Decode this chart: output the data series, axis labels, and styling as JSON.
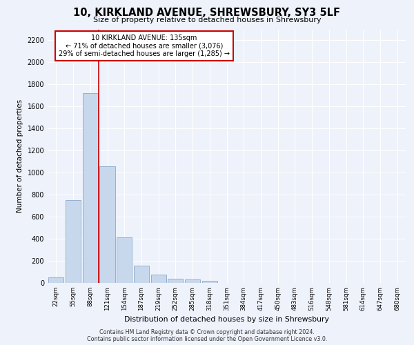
{
  "title": "10, KIRKLAND AVENUE, SHREWSBURY, SY3 5LF",
  "subtitle": "Size of property relative to detached houses in Shrewsbury",
  "xlabel": "Distribution of detached houses by size in Shrewsbury",
  "ylabel": "Number of detached properties",
  "footer_line1": "Contains HM Land Registry data © Crown copyright and database right 2024.",
  "footer_line2": "Contains public sector information licensed under the Open Government Licence v3.0.",
  "annotation_line1": "10 KIRKLAND AVENUE: 135sqm",
  "annotation_line2": "← 71% of detached houses are smaller (3,076)",
  "annotation_line3": "29% of semi-detached houses are larger (1,285) →",
  "bar_color": "#c8d8ec",
  "bar_edge_color": "#8aa8c8",
  "vline_color": "#cc0000",
  "annotation_box_edge_color": "#cc0000",
  "background_color": "#eef2fb",
  "plot_bg_color": "#eef2fb",
  "categories": [
    "22sqm",
    "55sqm",
    "88sqm",
    "121sqm",
    "154sqm",
    "187sqm",
    "219sqm",
    "252sqm",
    "285sqm",
    "318sqm",
    "351sqm",
    "384sqm",
    "417sqm",
    "450sqm",
    "483sqm",
    "516sqm",
    "548sqm",
    "581sqm",
    "614sqm",
    "647sqm",
    "680sqm"
  ],
  "values": [
    50,
    750,
    1720,
    1060,
    415,
    155,
    75,
    38,
    30,
    20,
    0,
    0,
    0,
    0,
    0,
    0,
    0,
    0,
    0,
    0,
    0
  ],
  "ylim": [
    0,
    2300
  ],
  "yticks": [
    0,
    200,
    400,
    600,
    800,
    1000,
    1200,
    1400,
    1600,
    1800,
    2000,
    2200
  ],
  "vline_x": 2.5,
  "figsize": [
    6.0,
    5.0
  ],
  "dpi": 100
}
